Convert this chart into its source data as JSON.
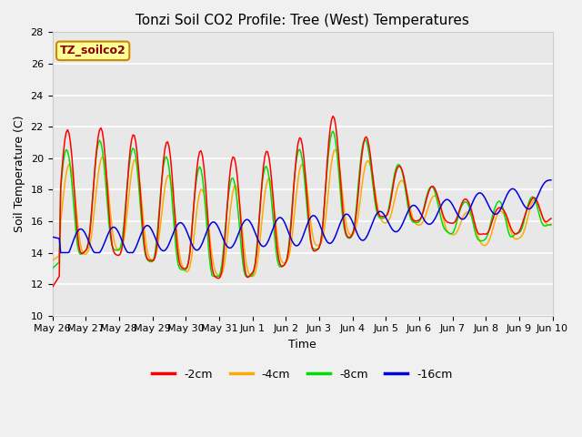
{
  "title": "Tonzi Soil CO2 Profile: Tree (West) Temperatures",
  "xlabel": "Time",
  "ylabel": "Soil Temperature (C)",
  "ylim": [
    10,
    28
  ],
  "yticks": [
    10,
    12,
    14,
    16,
    18,
    20,
    22,
    24,
    26,
    28
  ],
  "x_labels": [
    "May 26",
    "May 27",
    "May 28",
    "May 29",
    "May 30",
    "May 31",
    "Jun 1",
    "Jun 2",
    "Jun 3",
    "Jun 4",
    "Jun 5",
    "Jun 6",
    "Jun 7",
    "Jun 8",
    "Jun 9",
    "Jun 10"
  ],
  "legend_label": "TZ_soilco2",
  "series_labels": [
    "-2cm",
    "-4cm",
    "-8cm",
    "-16cm"
  ],
  "series_colors": [
    "#ff0000",
    "#ffaa00",
    "#00dd00",
    "#0000dd"
  ],
  "background_color": "#f0f0f0",
  "plot_bg_color": "#e8e8e8",
  "grid_color": "#ffffff",
  "title_fontsize": 11,
  "label_fontsize": 9,
  "tick_fontsize": 8,
  "n_points": 360,
  "days": 15,
  "pts_per_day": 24
}
